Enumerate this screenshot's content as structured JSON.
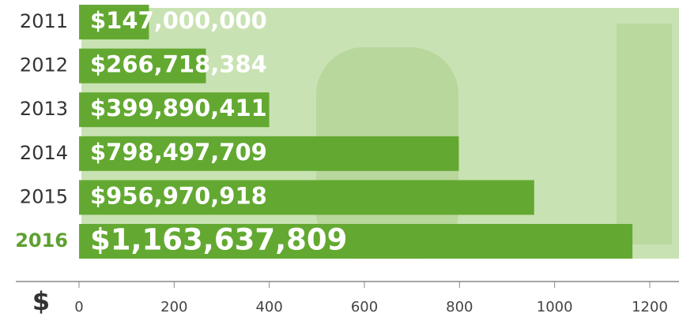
{
  "chart_data": {
    "type": "bar",
    "orientation": "horizontal",
    "categories": [
      "2011",
      "2012",
      "2013",
      "2014",
      "2015",
      "2016"
    ],
    "category_colors": [
      "#333333",
      "#333333",
      "#333333",
      "#333333",
      "#333333",
      "#5fa032"
    ],
    "values": [
      147,
      266.718384,
      399.890411,
      798.497709,
      956.970918,
      1163.637809
    ],
    "value_labels": [
      "$147,000,000",
      "$266,718,384",
      "$399,890,411",
      "$798,497,709",
      "$956,970,918",
      "$1,163,637,809"
    ],
    "color": "#5ea52a",
    "x_label": "$",
    "xlim": [
      0,
      1200
    ],
    "xticks": [
      0,
      200,
      400,
      600,
      800,
      1000,
      1200
    ]
  }
}
